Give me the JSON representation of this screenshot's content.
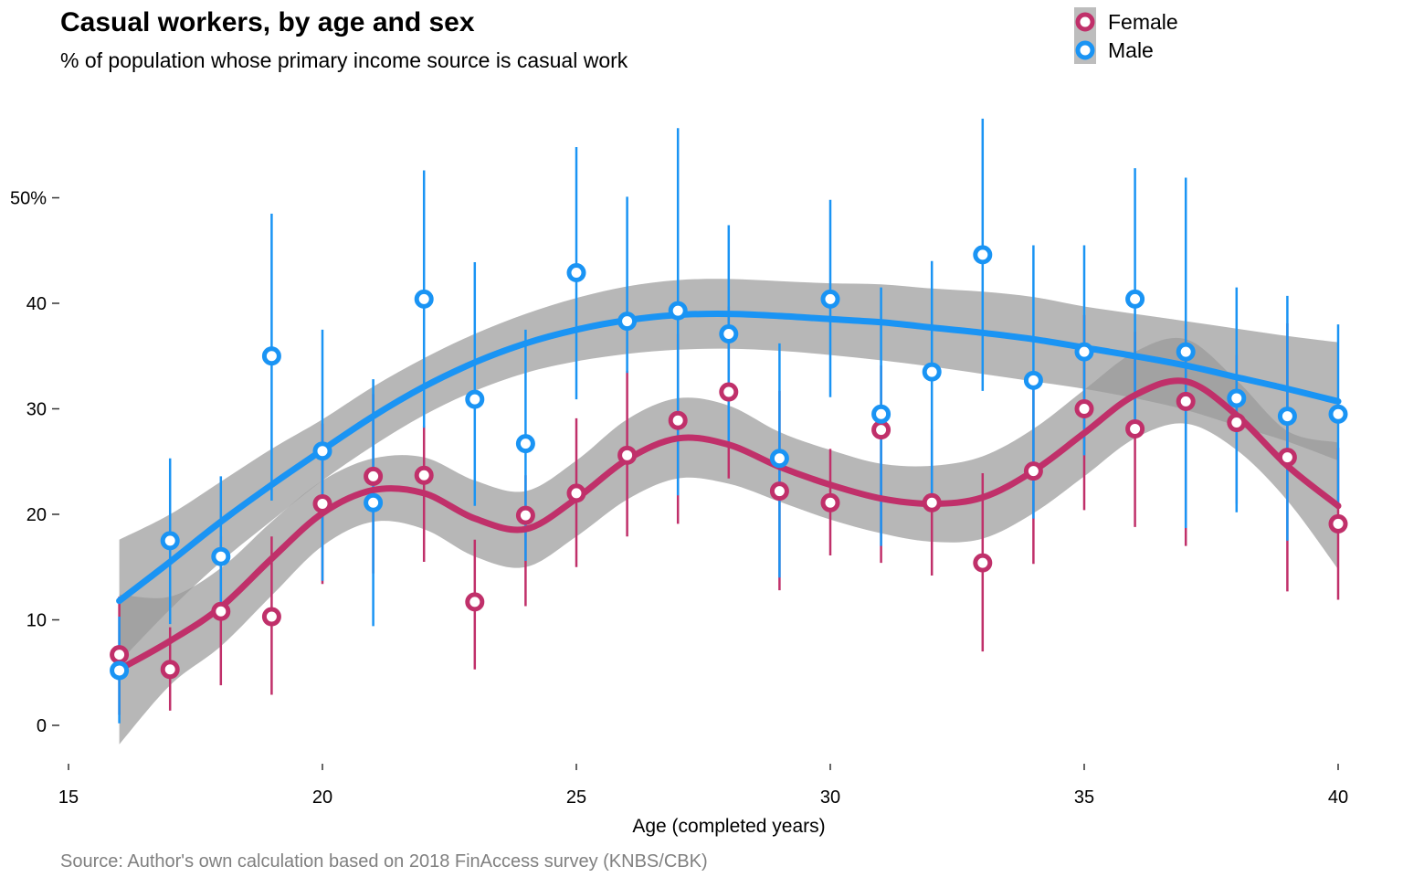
{
  "chart_data": {
    "type": "scatter",
    "title": "Casual workers, by age and sex",
    "subtitle": "% of population whose primary income source is casual work",
    "xlabel": "Age (completed years)",
    "ylabel": "",
    "caption": "Source: Author's own calculation based on 2018 FinAccess survey (KNBS/CBK)",
    "xlim": [
      15,
      40
    ],
    "ylim": [
      -4,
      58
    ],
    "x_ticks": [
      15,
      20,
      25,
      30,
      35,
      40
    ],
    "x_tick_labels": [
      "15",
      "20",
      "25",
      "30",
      "35",
      "40"
    ],
    "y_ticks": [
      0,
      10,
      20,
      30,
      40,
      50
    ],
    "y_tick_labels": [
      "0",
      "10",
      "20",
      "30",
      "40",
      "50%"
    ],
    "grid": false,
    "legend_position": "top-right",
    "legend": [
      "Female",
      "Male"
    ],
    "ages": [
      16,
      17,
      18,
      19,
      20,
      21,
      22,
      23,
      24,
      25,
      26,
      27,
      28,
      29,
      30,
      31,
      32,
      33,
      34,
      35,
      36,
      37,
      38,
      39,
      40
    ],
    "series": [
      {
        "name": "Female",
        "color": "#c0306a",
        "values": [
          6.7,
          5.3,
          10.8,
          10.3,
          21.0,
          23.6,
          23.7,
          11.7,
          19.9,
          22.0,
          25.6,
          28.9,
          31.6,
          22.2,
          21.1,
          28.0,
          21.1,
          15.4,
          24.1,
          30.0,
          28.1,
          30.7,
          28.7,
          25.4,
          19.1
        ],
        "ci_low": [
          1.0,
          1.4,
          3.8,
          2.9,
          13.4,
          14.4,
          15.5,
          5.3,
          11.3,
          15.0,
          17.9,
          19.1,
          23.4,
          12.8,
          16.1,
          15.4,
          14.2,
          7.0,
          15.3,
          20.4,
          18.8,
          17.0,
          21.0,
          12.7,
          11.9
        ],
        "ci_high": [
          12.2,
          9.3,
          17.9,
          17.9,
          28.6,
          31.4,
          28.4,
          17.6,
          23.7,
          29.1,
          33.6,
          37.1,
          39.7,
          31.7,
          26.2,
          34.1,
          28.0,
          23.9,
          32.6,
          38.9,
          37.3,
          38.0,
          35.1,
          38.1,
          26.3
        ],
        "smooth": [
          5.3,
          8.0,
          11.2,
          15.8,
          20.1,
          22.3,
          22.0,
          19.6,
          18.6,
          21.5,
          25.2,
          27.2,
          26.6,
          24.5,
          22.8,
          21.5,
          21.0,
          21.6,
          24.1,
          27.7,
          31.3,
          32.6,
          29.4,
          24.6,
          20.8
        ],
        "smooth_low": [
          -1.8,
          3.8,
          7.5,
          12.3,
          17.0,
          19.3,
          18.6,
          16.0,
          15.0,
          17.9,
          21.4,
          23.4,
          22.9,
          21.2,
          19.5,
          18.2,
          17.4,
          17.7,
          20.1,
          23.6,
          27.2,
          28.6,
          26.1,
          21.3,
          14.8
        ],
        "smooth_high": [
          12.4,
          12.2,
          14.9,
          19.3,
          23.2,
          25.3,
          25.4,
          23.2,
          22.2,
          25.1,
          29.0,
          31.0,
          30.3,
          27.8,
          26.1,
          24.8,
          24.6,
          25.5,
          28.1,
          31.8,
          35.4,
          36.6,
          32.7,
          27.9,
          26.8
        ]
      },
      {
        "name": "Male",
        "color": "#1a94f4",
        "values": [
          5.2,
          17.5,
          16.0,
          35.0,
          26.0,
          21.1,
          40.4,
          30.9,
          26.7,
          42.9,
          38.3,
          39.3,
          37.1,
          25.3,
          40.4,
          29.5,
          33.5,
          44.6,
          32.7,
          35.4,
          40.4,
          35.4,
          31.0,
          29.3,
          29.5
        ],
        "ci_low": [
          0.2,
          9.6,
          10.9,
          21.3,
          13.7,
          9.4,
          28.2,
          20.8,
          15.6,
          30.9,
          33.4,
          21.8,
          26.9,
          14.0,
          31.1,
          17.0,
          21.4,
          31.7,
          19.6,
          25.6,
          28.8,
          18.7,
          20.2,
          17.5,
          20.9
        ],
        "ci_high": [
          10.3,
          25.3,
          23.6,
          48.5,
          37.5,
          32.8,
          52.6,
          43.9,
          37.5,
          54.8,
          50.1,
          56.6,
          47.4,
          36.2,
          49.8,
          41.5,
          44.0,
          57.5,
          45.5,
          45.5,
          52.8,
          51.9,
          41.5,
          40.7,
          38.0
        ],
        "smooth": [
          11.8,
          15.5,
          19.3,
          22.8,
          26.1,
          29.3,
          32.1,
          34.4,
          36.2,
          37.5,
          38.4,
          38.9,
          39.0,
          38.8,
          38.5,
          38.2,
          37.7,
          37.2,
          36.6,
          35.8,
          35.0,
          34.1,
          33.0,
          31.9,
          30.7
        ],
        "smooth_low": [
          6.0,
          11.0,
          15.5,
          19.4,
          23.2,
          26.5,
          29.4,
          31.7,
          33.4,
          34.5,
          35.2,
          35.6,
          35.7,
          35.5,
          35.1,
          34.6,
          34.0,
          33.3,
          32.6,
          31.9,
          31.0,
          29.9,
          28.4,
          26.9,
          25.1
        ],
        "smooth_high": [
          17.6,
          20.0,
          23.1,
          26.2,
          29.0,
          32.1,
          34.8,
          37.1,
          39.0,
          40.5,
          41.6,
          42.2,
          42.3,
          42.1,
          41.9,
          41.8,
          41.4,
          41.1,
          40.6,
          39.7,
          39.0,
          38.3,
          37.6,
          36.9,
          36.3
        ]
      }
    ]
  }
}
